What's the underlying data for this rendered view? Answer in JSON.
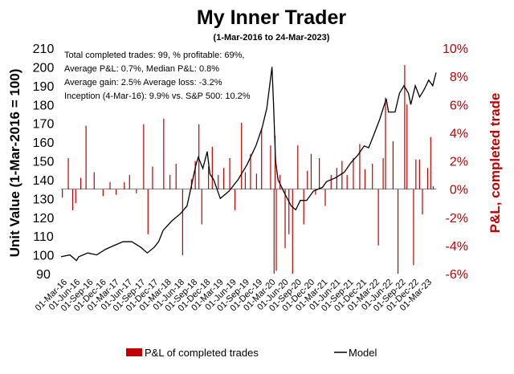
{
  "chart_data": {
    "type": "bar+line",
    "title": "My Inner Trader",
    "subtitle": "(1-Mar-2016 to 24-Mar-2023)",
    "ylabel_left": "Unit Value (1-Mar-2016 = 100)",
    "ylabel_right": "P&L, completed trade",
    "ylim_left": [
      90,
      210
    ],
    "yticks_left": [
      "90",
      "100",
      "110",
      "120",
      "130",
      "140",
      "150",
      "160",
      "170",
      "180",
      "190",
      "200",
      "210"
    ],
    "ylim_right": [
      -6,
      10
    ],
    "yticks_right": [
      "-6%",
      "-4%",
      "-2%",
      "0%",
      "2%",
      "4%",
      "6%",
      "8%",
      "10%"
    ],
    "x_range": [
      "2016-03-01",
      "2023-03-24"
    ],
    "xtick_labels": [
      "01-Mar-16",
      "01-Jun-16",
      "01-Sep-16",
      "01-Dec-16",
      "01-Mar-17",
      "01-Jun-17",
      "01-Sep-17",
      "01-Dec-17",
      "01-Mar-18",
      "01-Jun-18",
      "01-Sep-18",
      "01-Dec-18",
      "01-Mar-19",
      "01-Jun-19",
      "01-Sep-19",
      "01-Dec-19",
      "01-Mar-20",
      "01-Jun-20",
      "01-Sep-20",
      "01-Dec-20",
      "01-Mar-21",
      "01-Jun-21",
      "01-Sep-21",
      "01-Dec-21",
      "01-Mar-22",
      "01-Jun-22",
      "01-Sep-22",
      "01-Dec-22",
      "01-Mar-23"
    ],
    "annotations": [
      "Total completed trades: 99, % profitable: 69%,",
      "Average P&L: 0.7%, Median P&L: 0.8%",
      "Average gain: 2.5% Average loss: -3.2%",
      "Inception (4-Mar-16): 9.9% vs. S&P 500: 10.2%"
    ],
    "series": [
      {
        "name": "Model",
        "type": "line",
        "color": "#000000",
        "axis": "left",
        "points": [
          [
            "2016-03-01",
            99
          ],
          [
            "2016-05-01",
            100
          ],
          [
            "2016-06-15",
            97
          ],
          [
            "2016-07-01",
            99
          ],
          [
            "2016-09-01",
            101
          ],
          [
            "2016-11-01",
            100
          ],
          [
            "2017-01-01",
            103
          ],
          [
            "2017-03-01",
            105
          ],
          [
            "2017-05-01",
            107
          ],
          [
            "2017-07-01",
            107
          ],
          [
            "2017-09-01",
            104
          ],
          [
            "2017-10-15",
            101
          ],
          [
            "2017-12-01",
            104
          ],
          [
            "2018-01-01",
            107
          ],
          [
            "2018-02-01",
            113
          ],
          [
            "2018-04-01",
            118
          ],
          [
            "2018-06-01",
            122
          ],
          [
            "2018-07-15",
            126
          ],
          [
            "2018-08-01",
            132
          ],
          [
            "2018-09-15",
            148
          ],
          [
            "2018-10-01",
            152
          ],
          [
            "2018-11-01",
            146
          ],
          [
            "2018-12-01",
            155
          ],
          [
            "2018-12-20",
            143
          ],
          [
            "2019-01-15",
            140
          ],
          [
            "2019-03-01",
            130
          ],
          [
            "2019-05-01",
            134
          ],
          [
            "2019-07-01",
            140
          ],
          [
            "2019-09-01",
            148
          ],
          [
            "2019-11-01",
            158
          ],
          [
            "2019-12-15",
            168
          ],
          [
            "2020-01-15",
            178
          ],
          [
            "2020-02-20",
            200
          ],
          [
            "2020-03-01",
            180
          ],
          [
            "2020-03-15",
            150
          ],
          [
            "2020-04-01",
            140
          ],
          [
            "2020-05-15",
            133
          ],
          [
            "2020-07-01",
            126
          ],
          [
            "2020-08-01",
            124
          ],
          [
            "2020-09-01",
            129
          ],
          [
            "2020-10-15",
            129
          ],
          [
            "2020-12-01",
            134
          ],
          [
            "2021-02-01",
            136
          ],
          [
            "2021-03-01",
            139
          ],
          [
            "2021-05-01",
            141
          ],
          [
            "2021-07-01",
            144
          ],
          [
            "2021-08-15",
            149
          ],
          [
            "2021-10-01",
            153
          ],
          [
            "2021-11-15",
            158
          ],
          [
            "2021-12-15",
            157
          ],
          [
            "2022-01-15",
            163
          ],
          [
            "2022-03-01",
            172
          ],
          [
            "2022-04-15",
            183
          ],
          [
            "2022-05-01",
            176
          ],
          [
            "2022-06-15",
            176
          ],
          [
            "2022-07-15",
            186
          ],
          [
            "2022-08-15",
            190
          ],
          [
            "2022-09-15",
            186
          ],
          [
            "2022-10-01",
            180
          ],
          [
            "2022-11-01",
            190
          ],
          [
            "2022-12-01",
            184
          ],
          [
            "2023-01-01",
            188
          ],
          [
            "2023-02-01",
            193
          ],
          [
            "2023-03-01",
            190
          ],
          [
            "2023-03-24",
            197
          ]
        ]
      },
      {
        "name": "P&L of completed trades",
        "type": "bar",
        "color": "#c00000",
        "axis": "right",
        "points": [
          [
            "2016-03-10",
            -0.6
          ],
          [
            "2016-04-20",
            2.2
          ],
          [
            "2016-05-20",
            -1.5
          ],
          [
            "2016-06-10",
            -1.0
          ],
          [
            "2016-07-15",
            0.8
          ],
          [
            "2016-08-20",
            4.5
          ],
          [
            "2016-10-15",
            1.2
          ],
          [
            "2016-12-15",
            -0.5
          ],
          [
            "2017-02-01",
            0.5
          ],
          [
            "2017-03-15",
            -0.4
          ],
          [
            "2017-05-10",
            0.5
          ],
          [
            "2017-06-15",
            1.0
          ],
          [
            "2017-08-01",
            -0.3
          ],
          [
            "2017-09-20",
            4.6
          ],
          [
            "2017-10-20",
            -3.2
          ],
          [
            "2017-11-20",
            1.6
          ],
          [
            "2018-02-05",
            5.0
          ],
          [
            "2018-03-20",
            1.0
          ],
          [
            "2018-05-01",
            1.8
          ],
          [
            "2018-06-15",
            -4.7
          ],
          [
            "2018-08-15",
            0.7
          ],
          [
            "2018-09-10",
            2.0
          ],
          [
            "2018-10-05",
            4.6
          ],
          [
            "2018-10-25",
            -2.5
          ],
          [
            "2018-12-10",
            1.6
          ],
          [
            "2019-01-05",
            3.0
          ],
          [
            "2019-02-15",
            1.0
          ],
          [
            "2019-03-25",
            1.5
          ],
          [
            "2019-05-05",
            2.2
          ],
          [
            "2019-06-10",
            -1.5
          ],
          [
            "2019-07-25",
            4.7
          ],
          [
            "2019-08-20",
            1.2
          ],
          [
            "2019-09-25",
            2.5
          ],
          [
            "2019-11-05",
            1.1
          ],
          [
            "2019-12-10",
            4.3
          ],
          [
            "2020-02-10",
            3.1
          ],
          [
            "2020-03-05",
            -6.0
          ],
          [
            "2020-03-12",
            3.8
          ],
          [
            "2020-03-20",
            -5.8
          ],
          [
            "2020-04-15",
            1.0
          ],
          [
            "2020-05-20",
            -4.2
          ],
          [
            "2020-06-15",
            -3.2
          ],
          [
            "2020-07-10",
            -6.0
          ],
          [
            "2020-08-15",
            3.1
          ],
          [
            "2020-09-25",
            -2.5
          ],
          [
            "2020-10-20",
            1.3
          ],
          [
            "2020-11-15",
            2.5
          ],
          [
            "2020-12-15",
            -0.4
          ],
          [
            "2021-01-10",
            2.2
          ],
          [
            "2021-02-20",
            -1.2
          ],
          [
            "2021-04-01",
            1.0
          ],
          [
            "2021-05-10",
            1.5
          ],
          [
            "2021-06-15",
            2.0
          ],
          [
            "2021-07-20",
            1.0
          ],
          [
            "2021-09-01",
            2.2
          ],
          [
            "2021-10-15",
            3.2
          ],
          [
            "2021-11-20",
            1.4
          ],
          [
            "2022-01-10",
            1.8
          ],
          [
            "2022-02-20",
            -4.0
          ],
          [
            "2022-03-25",
            2.2
          ],
          [
            "2022-04-10",
            6.5
          ],
          [
            "2022-06-01",
            3.4
          ],
          [
            "2022-07-05",
            -6.0
          ],
          [
            "2022-08-20",
            8.8
          ],
          [
            "2022-09-05",
            6.0
          ],
          [
            "2022-10-20",
            -5.4
          ],
          [
            "2022-11-05",
            2.1
          ],
          [
            "2022-11-30",
            2.1
          ],
          [
            "2022-12-20",
            -1.8
          ],
          [
            "2023-01-25",
            1.5
          ],
          [
            "2023-02-15",
            3.7
          ],
          [
            "2023-03-05",
            0.2
          ]
        ]
      }
    ],
    "legend": {
      "position": "bottom"
    }
  }
}
